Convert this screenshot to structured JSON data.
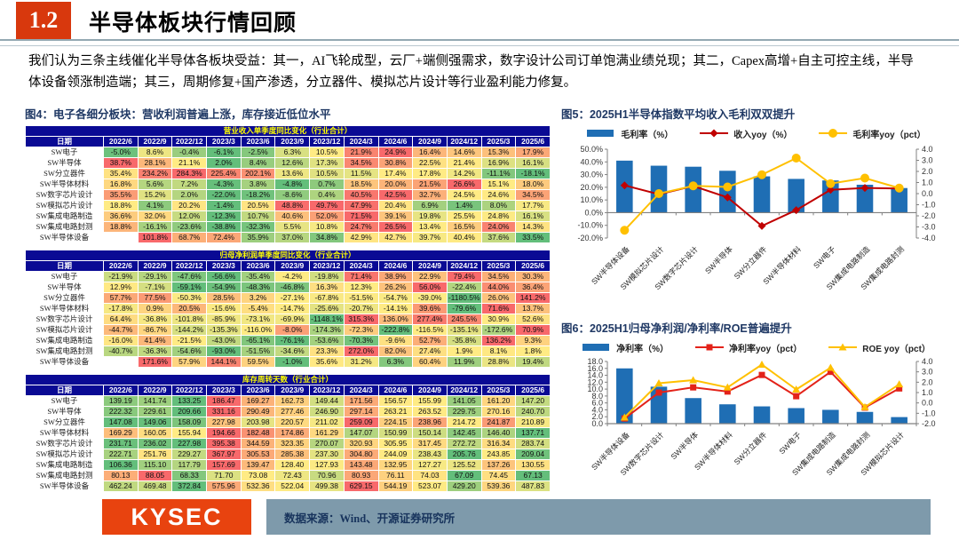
{
  "header": {
    "section_number": "1.2",
    "title": "半导体板块行情回顾"
  },
  "intro": "我们认为三条主线催化半导体各板块受益：其一，AI飞轮成型，云厂+端侧强需求，数字设计公司订单饱满业绩兑现；其二，Capex高增+自主可控主线，半导体设备领涨制造端；其三，周期修复+国产渗透，分立器件、模拟芯片设计等行业盈利能力修复。",
  "figure4": {
    "title": "图4：电子各细分板块：营收利润普遍上涨，库存接近低位水平",
    "heat_colors": {
      "low": "#63BE7B",
      "mid": "#FFEB84",
      "high": "#F8696B"
    },
    "date_header": "日期",
    "columns": [
      "2022/6",
      "2022/9",
      "2022/12",
      "2023/3",
      "2023/6",
      "2023/9",
      "2023/12",
      "2024/3",
      "2024/6",
      "2024/9",
      "2024/12",
      "2025/3",
      "2025/6"
    ],
    "tables": [
      {
        "title": "营业收入单季度同比变化（行业合计）",
        "rows": [
          {
            "label": "SW电子",
            "values": [
              "-5.0%",
              "8.6%",
              "-0.4%",
              "-6.1%",
              "-2.5%",
              "6.3%",
              "10.5%",
              "21.9%",
              "24.9%",
              "16.4%",
              "14.6%",
              "15.3%",
              "17.9%"
            ]
          },
          {
            "label": "SW半导体",
            "values": [
              "38.7%",
              "28.1%",
              "21.1%",
              "2.0%",
              "8.4%",
              "12.6%",
              "17.3%",
              "34.5%",
              "30.8%",
              "22.5%",
              "21.4%",
              "16.9%",
              "16.1%"
            ]
          },
          {
            "label": "SW分立器件",
            "values": [
              "35.4%",
              "234.2%",
              "284.3%",
              "225.4%",
              "202.1%",
              "13.6%",
              "10.5%",
              "11.5%",
              "17.4%",
              "17.8%",
              "14.2%",
              "-11.1%",
              "-18.1%"
            ]
          },
          {
            "label": "SW半导体材料",
            "values": [
              "16.8%",
              "5.6%",
              "7.2%",
              "-4.3%",
              "3.8%",
              "-4.8%",
              "0.7%",
              "18.5%",
              "20.0%",
              "21.5%",
              "26.6%",
              "15.1%",
              "18.0%"
            ]
          },
          {
            "label": "SW数字芯片设计",
            "values": [
              "35.5%",
              "15.2%",
              "2.0%",
              "-22.0%",
              "-18.2%",
              "-8.6%",
              "0.4%",
              "40.5%",
              "42.5%",
              "32.7%",
              "24.5%",
              "24.6%",
              "34.5%"
            ]
          },
          {
            "label": "SW模拟芯片设计",
            "values": [
              "18.8%",
              "4.1%",
              "20.2%",
              "-1.4%",
              "20.5%",
              "48.8%",
              "49.7%",
              "47.9%",
              "20.4%",
              "6.9%",
              "1.4%",
              "8.0%",
              "17.7%"
            ]
          },
          {
            "label": "SW集成电路制造",
            "values": [
              "36.6%",
              "32.0%",
              "12.0%",
              "-12.3%",
              "10.7%",
              "40.6%",
              "52.0%",
              "71.5%",
              "39.1%",
              "19.8%",
              "25.5%",
              "24.8%",
              "16.1%"
            ]
          },
          {
            "label": "SW集成电路封测",
            "values": [
              "18.8%",
              "-16.1%",
              "-23.6%",
              "-38.8%",
              "-32.3%",
              "5.5%",
              "10.8%",
              "24.7%",
              "26.5%",
              "13.4%",
              "16.5%",
              "24.0%",
              "14.3%"
            ]
          },
          {
            "label": "SW半导体设备",
            "values": [
              "",
              "101.8%",
              "68.7%",
              "72.4%",
              "35.9%",
              "37.0%",
              "34.8%",
              "42.9%",
              "42.7%",
              "39.7%",
              "40.4%",
              "37.6%",
              "33.5%"
            ]
          }
        ]
      },
      {
        "title": "归母净利润单季度同比变化（行业合计）",
        "rows": [
          {
            "label": "SW电子",
            "values": [
              "-21.9%",
              "-29.1%",
              "-47.6%",
              "-56.6%",
              "-35.4%",
              "-4.2%",
              "-19.8%",
              "71.4%",
              "38.9%",
              "22.9%",
              "79.4%",
              "34.5%",
              "30.3%"
            ]
          },
          {
            "label": "SW半导体",
            "values": [
              "12.9%",
              "-7.1%",
              "-59.1%",
              "-54.9%",
              "-48.3%",
              "-46.8%",
              "16.3%",
              "12.3%",
              "26.2%",
              "56.0%",
              "-22.4%",
              "44.0%",
              "36.4%"
            ]
          },
          {
            "label": "SW分立器件",
            "values": [
              "57.7%",
              "77.5%",
              "-50.3%",
              "28.5%",
              "3.2%",
              "-27.1%",
              "-67.8%",
              "-51.5%",
              "-54.7%",
              "-39.0%",
              "-1180.5%",
              "26.0%",
              "141.2%"
            ]
          },
          {
            "label": "SW半导体材料",
            "values": [
              "-17.8%",
              "0.9%",
              "20.5%",
              "-15.6%",
              "-5.4%",
              "-14.7%",
              "-25.6%",
              "-20.7%",
              "-14.1%",
              "39.6%",
              "-79.6%",
              "71.6%",
              "13.7%"
            ]
          },
          {
            "label": "SW数字芯片设计",
            "values": [
              "64.4%",
              "-36.8%",
              "-101.8%",
              "-85.9%",
              "-73.1%",
              "-69.9%",
              "-1148.1%",
              "315.3%",
              "136.0%",
              "277.4%",
              "245.5%",
              "30.9%",
              "52.6%"
            ]
          },
          {
            "label": "SW模拟芯片设计",
            "values": [
              "-44.7%",
              "-86.7%",
              "-144.2%",
              "-135.3%",
              "-116.0%",
              "-8.0%",
              "-174.3%",
              "-72.3%",
              "-222.8%",
              "-116.5%",
              "-135.1%",
              "-172.6%",
              "70.9%"
            ]
          },
          {
            "label": "SW集成电路制造",
            "values": [
              "-16.0%",
              "41.4%",
              "-21.5%",
              "-43.0%",
              "-65.1%",
              "-76.1%",
              "-53.6%",
              "-70.3%",
              "-9.6%",
              "52.7%",
              "-35.8%",
              "136.2%",
              "9.3%"
            ]
          },
          {
            "label": "SW集成电路封测",
            "values": [
              "-40.7%",
              "-36.3%",
              "-54.6%",
              "-93.0%",
              "-51.5%",
              "-34.6%",
              "23.3%",
              "272.0%",
              "82.0%",
              "27.4%",
              "1.9%",
              "8.1%",
              "1.8%"
            ]
          },
          {
            "label": "SW半导体设备",
            "values": [
              "",
              "171.6%",
              "57.9%",
              "144.1%",
              "59.5%",
              "-1.0%",
              "35.6%",
              "31.2%",
              "6.3%",
              "60.4%",
              "11.9%",
              "28.8%",
              "19.4%"
            ]
          }
        ]
      },
      {
        "title": "库存周转天数（行业合计）",
        "rows": [
          {
            "label": "SW电子",
            "values": [
              "139.19",
              "141.74",
              "133.25",
              "186.47",
              "169.27",
              "162.73",
              "149.44",
              "171.56",
              "156.57",
              "155.99",
              "141.05",
              "161.20",
              "147.20"
            ]
          },
          {
            "label": "SW半导体",
            "values": [
              "222.32",
              "229.61",
              "209.66",
              "331.16",
              "290.49",
              "277.46",
              "246.90",
              "297.14",
              "263.21",
              "263.52",
              "229.75",
              "270.16",
              "240.70"
            ]
          },
          {
            "label": "SW分立器件",
            "values": [
              "147.08",
              "149.06",
              "158.09",
              "227.98",
              "203.98",
              "220.57",
              "211.02",
              "259.09",
              "224.15",
              "238.96",
              "214.72",
              "241.87",
              "210.89"
            ]
          },
          {
            "label": "SW半导体材料",
            "values": [
              "169.29",
              "160.05",
              "155.94",
              "194.66",
              "182.48",
              "174.86",
              "161.29",
              "147.07",
              "150.99",
              "150.14",
              "142.45",
              "146.40",
              "137.71"
            ]
          },
          {
            "label": "SW数字芯片设计",
            "values": [
              "231.71",
              "236.02",
              "227.98",
              "395.38",
              "344.59",
              "323.35",
              "270.07",
              "320.93",
              "305.95",
              "317.45",
              "272.72",
              "316.34",
              "283.74"
            ]
          },
          {
            "label": "SW模拟芯片设计",
            "values": [
              "222.71",
              "251.76",
              "229.27",
              "367.97",
              "305.53",
              "285.38",
              "237.30",
              "304.80",
              "244.09",
              "238.43",
              "205.76",
              "243.85",
              "209.04"
            ]
          },
          {
            "label": "SW集成电路制造",
            "values": [
              "106.36",
              "115.10",
              "117.79",
              "157.69",
              "139.47",
              "128.40",
              "127.93",
              "143.48",
              "132.95",
              "127.27",
              "125.52",
              "137.26",
              "130.55"
            ]
          },
          {
            "label": "SW集成电路封测",
            "values": [
              "80.13",
              "88.05",
              "68.33",
              "71.70",
              "73.08",
              "72.43",
              "70.96",
              "80.93",
              "76.11",
              "74.03",
              "67.09",
              "74.45",
              "67.13"
            ]
          },
          {
            "label": "SW半导体设备",
            "values": [
              "462.24",
              "469.48",
              "372.84",
              "575.96",
              "532.36",
              "522.04",
              "499.38",
              "629.15",
              "544.19",
              "523.07",
              "429.20",
              "539.36",
              "487.83"
            ]
          }
        ]
      }
    ]
  },
  "chart_data": [
    {
      "id": "fig5",
      "type": "bar",
      "title": "图5：2025H1半导体指数平均收入毛利双双提升",
      "categories": [
        "SW半导体设备",
        "SW模拟芯片设计",
        "SW数字芯片设计",
        "SW半导体",
        "SW分立器件",
        "SW半导体材料",
        "SW电子",
        "SW集成电路制造",
        "SW集成电路封测"
      ],
      "series": [
        {
          "name": "毛利率（%）",
          "type": "bar",
          "axis": "left",
          "color": "#1F6EB4",
          "values": [
            41.0,
            37.0,
            36.2,
            33.0,
            28.6,
            26.6,
            25.4,
            22.0,
            19.4
          ]
        },
        {
          "name": "收入yoy（%）",
          "type": "line",
          "axis": "left",
          "color": "#C00000",
          "marker": "diamond",
          "values": [
            21.5,
            14.5,
            21.0,
            12.0,
            -10.5,
            2.0,
            18.0,
            19.5,
            19.0
          ]
        },
        {
          "name": "毛利率yoy（pct）",
          "type": "line",
          "axis": "right",
          "color": "#FFC000",
          "marker": "circle",
          "values": [
            -3.3,
            0.0,
            0.7,
            0.6,
            1.7,
            3.2,
            0.9,
            1.4,
            0.5
          ]
        }
      ],
      "left_axis": {
        "min": -20,
        "max": 50,
        "step": 10,
        "format": "pct"
      },
      "right_axis": {
        "min": -4,
        "max": 4,
        "step": 1,
        "format": "num"
      },
      "legend_position": "top",
      "grid": false
    },
    {
      "id": "fig6",
      "type": "bar",
      "title": "图6：2025H1归母净利润/净利率/ROE普遍提升",
      "categories": [
        "SW半导体设备",
        "SW数字芯片设计",
        "SW半导体",
        "SW半导体材料",
        "SW分立器件",
        "SW电子",
        "SW集成电路制造",
        "SW集成电路封测",
        "SW模拟芯片设计"
      ],
      "series": [
        {
          "name": "净利率（%）",
          "type": "bar",
          "axis": "left",
          "color": "#1F6EB4",
          "values": [
            16.0,
            10.7,
            7.4,
            5.6,
            5.0,
            4.5,
            4.0,
            3.4,
            1.9
          ]
        },
        {
          "name": "净利率yoy（pct）",
          "type": "line",
          "axis": "right",
          "color": "#E32219",
          "marker": "square",
          "values": [
            -1.5,
            1.0,
            1.5,
            1.1,
            2.7,
            0.65,
            3.0,
            -0.45,
            1.4
          ]
        },
        {
          "name": "ROE yoy（pct）",
          "type": "line",
          "axis": "right",
          "color": "#FFC000",
          "marker": "triangle",
          "values": [
            -1.4,
            1.9,
            2.2,
            1.5,
            3.7,
            1.3,
            3.4,
            -0.4,
            1.8
          ]
        }
      ],
      "left_axis": {
        "min": 0,
        "max": 18,
        "step": 2,
        "format": "num"
      },
      "right_axis": {
        "min": -2,
        "max": 4,
        "step": 1,
        "format": "num"
      },
      "legend_position": "top",
      "grid": false
    }
  ],
  "footer": {
    "logo": "KYSEC",
    "source": "数据来源：Wind、开源证券研究所"
  }
}
